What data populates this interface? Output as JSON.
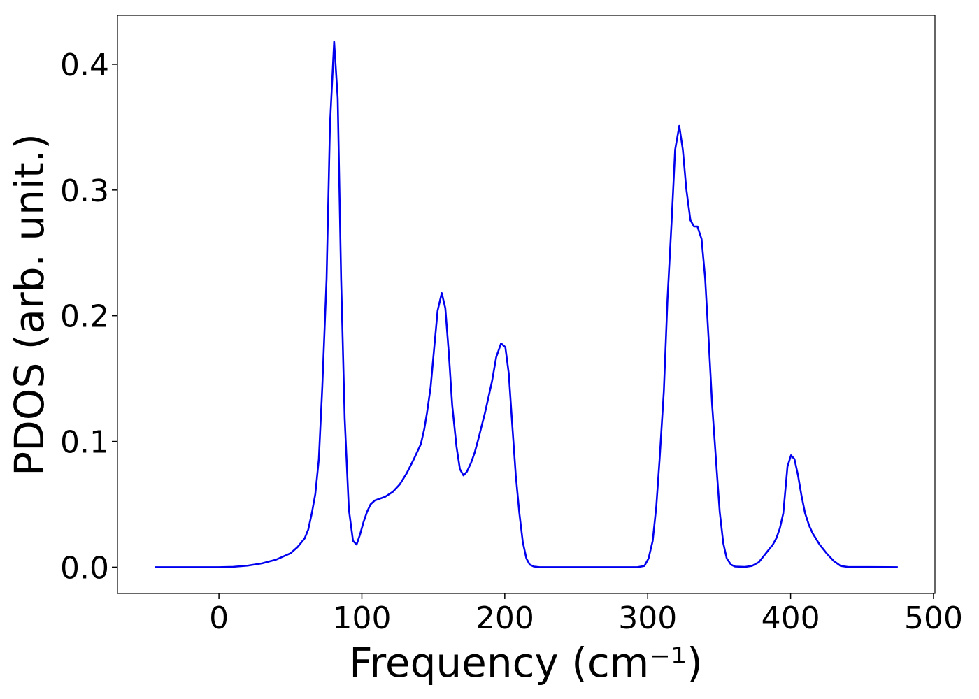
{
  "chart_data": {
    "type": "line",
    "xlabel": "Frequency (cm⁻¹)",
    "ylabel": "PDOS (arb. unit.)",
    "xlim": [
      -71,
      501
    ],
    "ylim": [
      -0.0209,
      0.4389
    ],
    "xticks": [
      0,
      100,
      200,
      300,
      400,
      500
    ],
    "yticks": [
      {
        "value": 0,
        "label": "0.0"
      },
      0.1,
      0.2,
      0.3,
      0.4
    ],
    "grid": false,
    "x": [
      -45,
      0,
      10,
      20,
      30,
      40,
      50,
      55,
      60,
      62.5,
      65.0,
      67.4,
      69.9,
      72.3,
      75.3,
      77.7,
      80.6,
      83.1,
      85.5,
      88.0,
      90.9,
      93.8,
      96.3,
      98.7,
      101.2,
      103.6,
      106.1,
      109.0,
      111.4,
      116.3,
      121.7,
      126.6,
      131.5,
      136.4,
      141.3,
      143.7,
      145.6,
      148.1,
      150.5,
      153.0,
      155.9,
      158.4,
      160.8,
      163.2,
      166.2,
      168.6,
      171.1,
      173.5,
      176.4,
      178.9,
      181.3,
      186.2,
      191.1,
      194.0,
      197.4,
      200.4,
      202.8,
      205.3,
      207.7,
      210.2,
      212.6,
      215.1,
      217.5,
      220.4,
      224.3,
      292.8,
      297.7,
      300.6,
      303.5,
      306.0,
      308.4,
      311.3,
      313.8,
      316.7,
      319.2,
      322.1,
      324.6,
      327.0,
      329.9,
      332.4,
      334.8,
      337.7,
      340.2,
      342.6,
      345.1,
      348.0,
      350.4,
      352.9,
      355.3,
      358.3,
      361.2,
      368.0,
      372.9,
      377.8,
      382.7,
      387.6,
      390.0,
      392.5,
      394.9,
      397.8,
      400.3,
      402.7,
      405.2,
      407.6,
      410.1,
      413.0,
      415.4,
      420.3,
      425.2,
      430.1,
      435.0,
      439.9,
      475
    ],
    "series": [
      {
        "name": "PDOS",
        "color": "#0000ee",
        "values": [
          0,
          0,
          0.0003,
          0.0012,
          0.003,
          0.006,
          0.011,
          0.016,
          0.023,
          0.03,
          0.043,
          0.058,
          0.086,
          0.143,
          0.229,
          0.352,
          0.418,
          0.373,
          0.229,
          0.118,
          0.046,
          0.021,
          0.018,
          0.026,
          0.036,
          0.044,
          0.05,
          0.053,
          0.054,
          0.056,
          0.06,
          0.066,
          0.075,
          0.086,
          0.098,
          0.11,
          0.123,
          0.143,
          0.173,
          0.204,
          0.218,
          0.206,
          0.171,
          0.129,
          0.096,
          0.078,
          0.073,
          0.076,
          0.083,
          0.091,
          0.101,
          0.123,
          0.148,
          0.167,
          0.178,
          0.175,
          0.154,
          0.112,
          0.073,
          0.043,
          0.02,
          0.007,
          0.002,
          0.0005,
          0,
          0,
          0.001,
          0.007,
          0.021,
          0.048,
          0.087,
          0.14,
          0.212,
          0.274,
          0.332,
          0.351,
          0.332,
          0.301,
          0.276,
          0.271,
          0.271,
          0.261,
          0.23,
          0.182,
          0.129,
          0.082,
          0.044,
          0.019,
          0.007,
          0.002,
          0.0005,
          0.0002,
          0.001,
          0.004,
          0.011,
          0.018,
          0.023,
          0.031,
          0.043,
          0.08,
          0.089,
          0.086,
          0.073,
          0.057,
          0.043,
          0.033,
          0.027,
          0.018,
          0.011,
          0.005,
          0.001,
          0.0002,
          0
        ]
      }
    ]
  }
}
